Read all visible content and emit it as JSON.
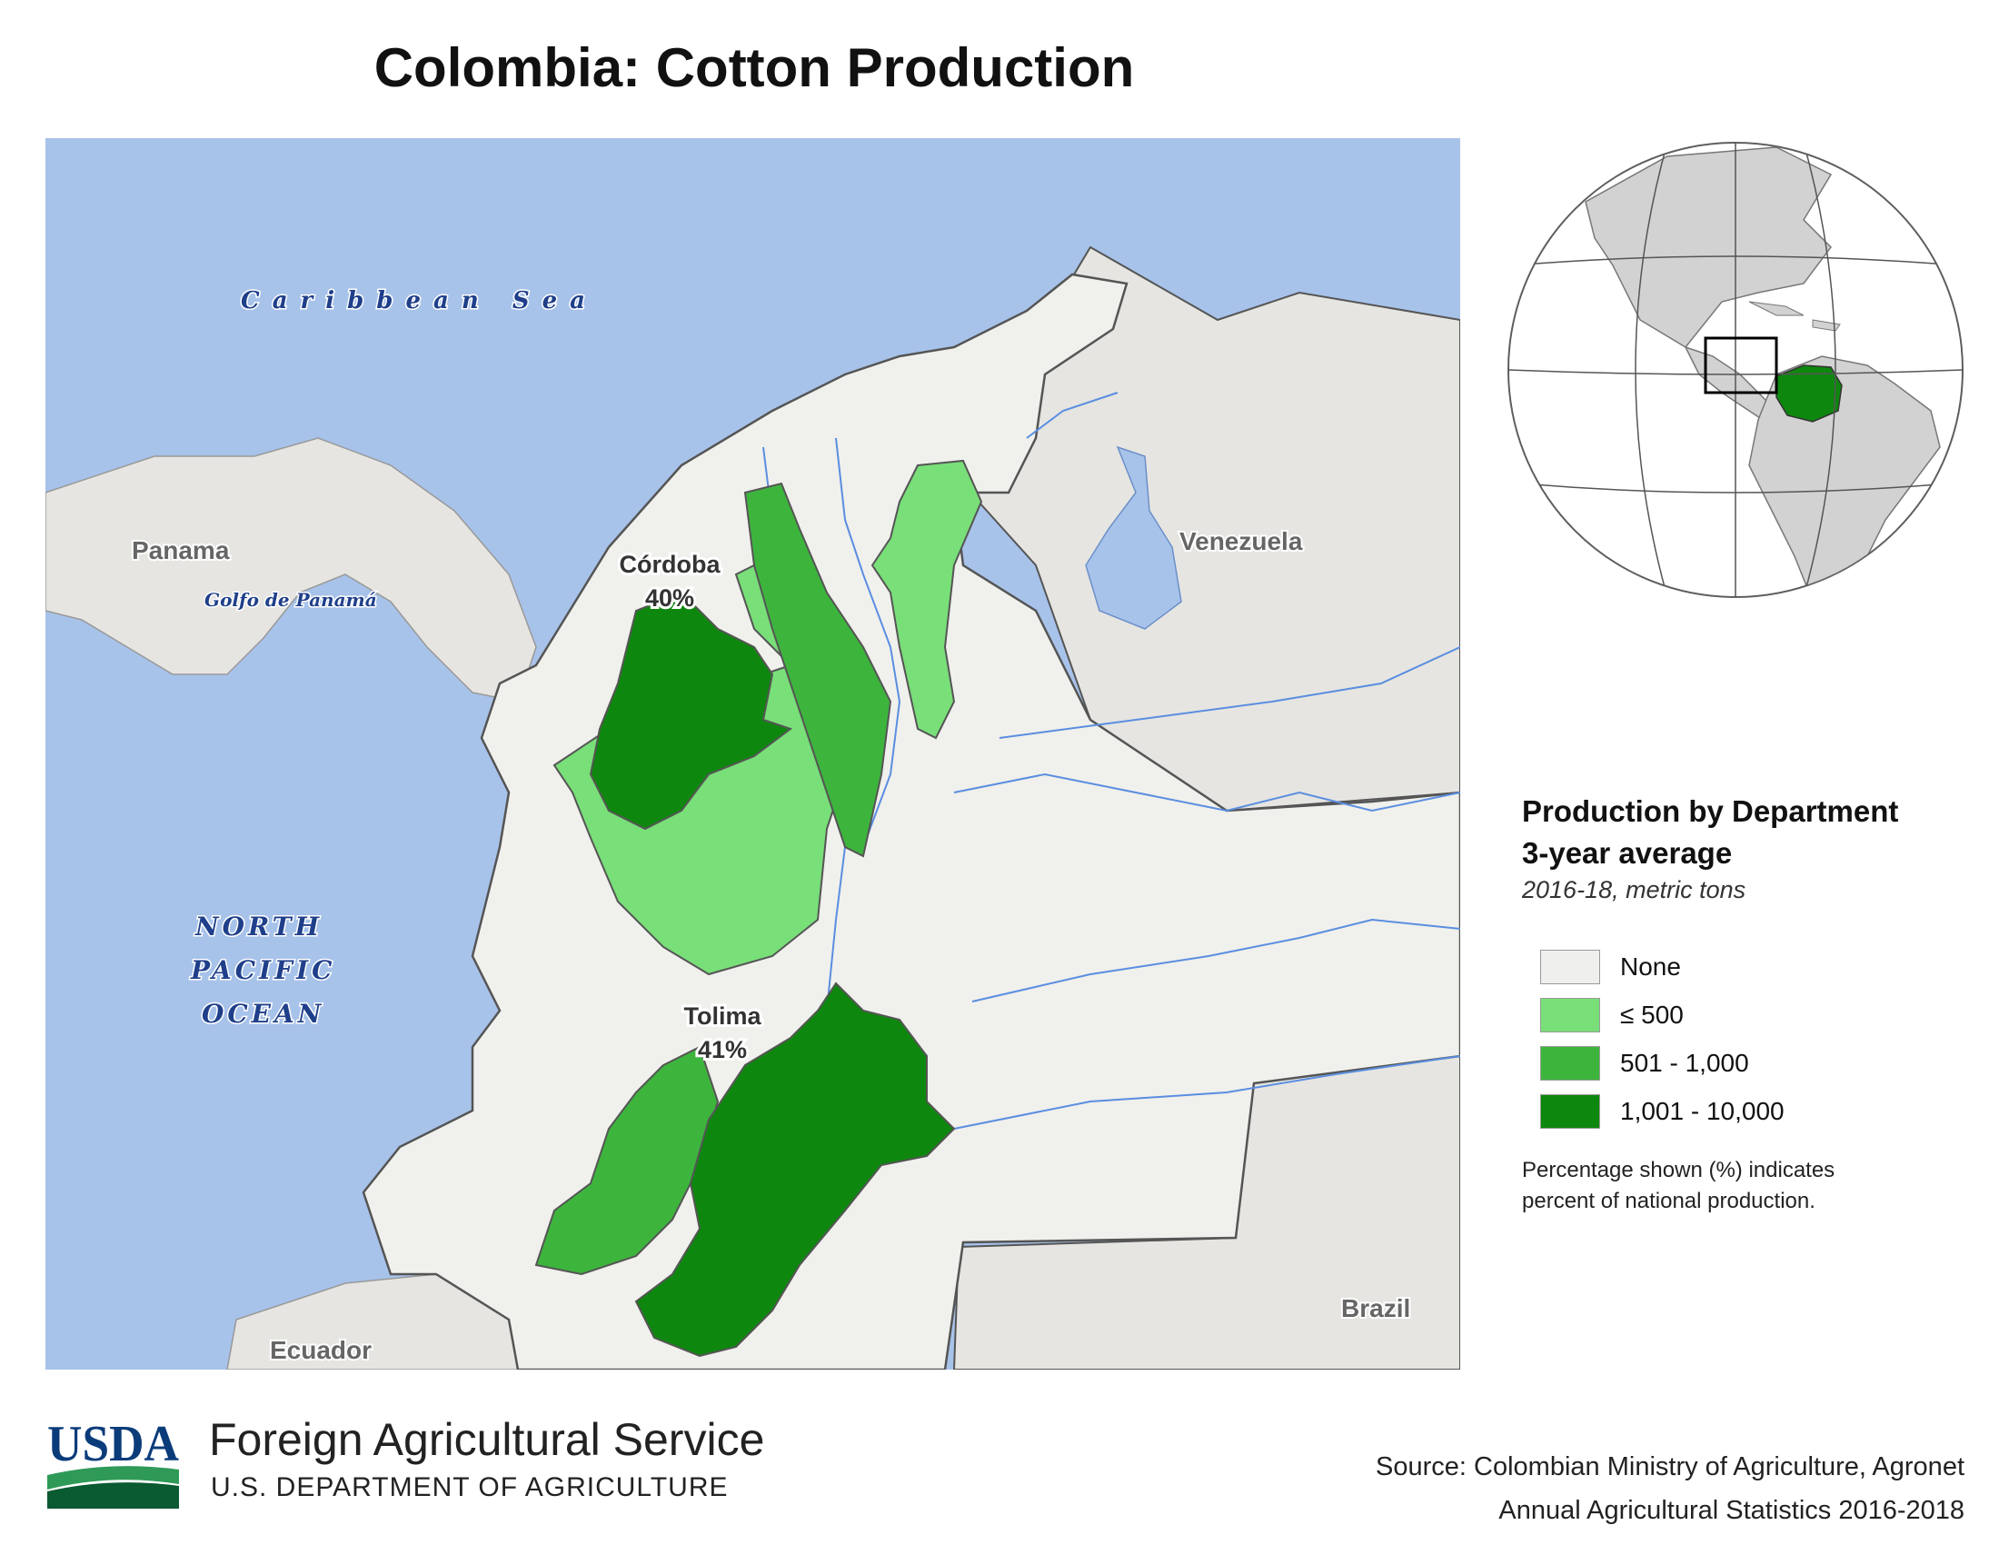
{
  "title": "Colombia: Cotton Production",
  "map": {
    "sea_labels": {
      "caribbean": "Caribbean Sea",
      "golfo": "Golfo de Panamá",
      "pacific_1": "NORTH",
      "pacific_2": "PACIFIC",
      "pacific_3": "OCEAN"
    },
    "country_labels": {
      "panama": "Panama",
      "venezuela": "Venezuela",
      "brazil": "Brazil",
      "ecuador": "Ecuador"
    },
    "departments": [
      {
        "name": "Córdoba",
        "share": "40%",
        "class": "1,001 - 10,000"
      },
      {
        "name": "Tolima",
        "share": "41%",
        "class": "1,001 - 10,000"
      }
    ],
    "colors": {
      "sea": "#a8c3ea",
      "land": "#ebe9e4",
      "colombia_none": "#f0f0ed",
      "class_1": "#79df79",
      "class_2": "#3db53d",
      "class_3": "#0e870e",
      "river": "#5a8ee0"
    }
  },
  "legend": {
    "title_line1": "Production by Department",
    "title_line2": "3-year average",
    "subtitle": "2016-18, metric tons",
    "items": [
      {
        "label": "None",
        "color": "#efefed"
      },
      {
        "label": "≤ 500",
        "color": "#79df79"
      },
      {
        "label": "501 - 1,000",
        "color": "#3db53d"
      },
      {
        "label": "1,001 - 10,000",
        "color": "#0e870e"
      }
    ],
    "note_line1": "Percentage shown (%) indicates",
    "note_line2": "percent of national production."
  },
  "footer": {
    "logo_text": "USDA",
    "agency": "Foreign Agricultural Service",
    "department": "U.S. DEPARTMENT OF AGRICULTURE",
    "source_line1": "Source: Colombian Ministry of Agriculture, Agronet",
    "source_line2": "Annual Agricultural Statistics 2016-2018"
  }
}
